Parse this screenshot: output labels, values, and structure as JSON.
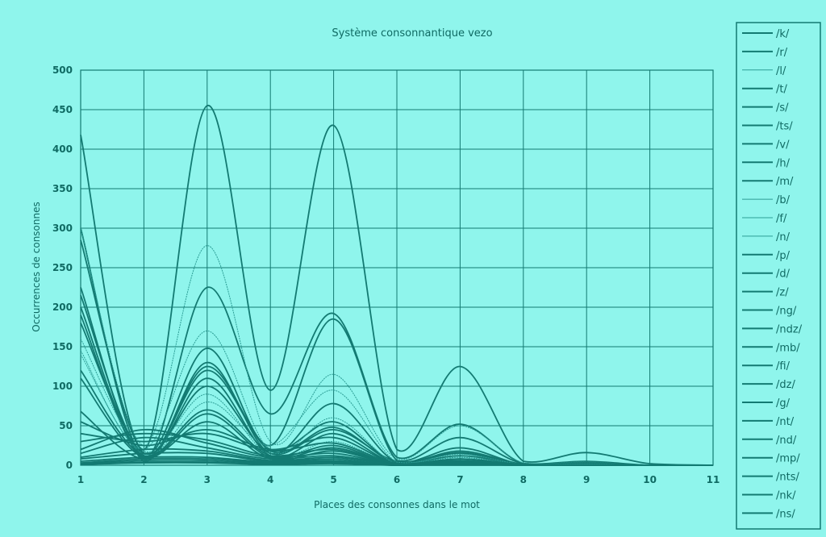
{
  "chart_data": {
    "type": "line",
    "title": "Système consonnantique vezo",
    "xlabel": "Places des consonnes dans le mot",
    "ylabel": "Occurrences de consonnes",
    "x": [
      1,
      2,
      3,
      4,
      5,
      6,
      7,
      8,
      9,
      10,
      11
    ],
    "xlim": [
      1,
      11
    ],
    "ylim": [
      0,
      500
    ],
    "yticks": [
      0,
      50,
      100,
      150,
      200,
      250,
      300,
      350,
      400,
      450,
      500
    ],
    "grid": true,
    "legend_position": "right",
    "series": [
      {
        "name": "/k/",
        "values": [
          418,
          20,
          455,
          95,
          430,
          20,
          125,
          5,
          16,
          2,
          0
        ]
      },
      {
        "name": "/r/",
        "values": [
          300,
          10,
          225,
          65,
          192,
          10,
          52,
          2,
          5,
          0,
          0
        ]
      },
      {
        "name": "/l/",
        "values": [
          300,
          25,
          278,
          30,
          115,
          8,
          50,
          3,
          4,
          0,
          0
        ]
      },
      {
        "name": "/t/",
        "values": [
          285,
          15,
          148,
          25,
          185,
          6,
          35,
          2,
          3,
          0,
          0
        ]
      },
      {
        "name": "/s/",
        "values": [
          225,
          5,
          130,
          15,
          78,
          4,
          22,
          1,
          2,
          0,
          0
        ]
      },
      {
        "name": "/ts/",
        "values": [
          215,
          12,
          120,
          20,
          55,
          3,
          18,
          1,
          1,
          0,
          0
        ]
      },
      {
        "name": "/v/",
        "values": [
          200,
          10,
          125,
          18,
          48,
          3,
          16,
          1,
          1,
          0,
          0
        ]
      },
      {
        "name": "/h/",
        "values": [
          190,
          8,
          110,
          12,
          40,
          2,
          12,
          1,
          1,
          0,
          0
        ]
      },
      {
        "name": "/m/",
        "values": [
          180,
          15,
          100,
          15,
          45,
          5,
          15,
          1,
          2,
          0,
          0
        ]
      },
      {
        "name": "/b/",
        "values": [
          160,
          18,
          90,
          12,
          30,
          2,
          10,
          1,
          1,
          0,
          0
        ]
      },
      {
        "name": "/f/",
        "values": [
          145,
          20,
          170,
          18,
          60,
          2,
          14,
          1,
          1,
          0,
          0
        ]
      },
      {
        "name": "/n/",
        "values": [
          140,
          14,
          80,
          25,
          95,
          4,
          10,
          1,
          1,
          0,
          0
        ]
      },
      {
        "name": "/p/",
        "values": [
          120,
          12,
          70,
          12,
          25,
          1,
          8,
          1,
          0,
          0,
          0
        ]
      },
      {
        "name": "/d/",
        "values": [
          110,
          10,
          65,
          10,
          22,
          1,
          6,
          0,
          0,
          0,
          0
        ]
      },
      {
        "name": "/z/",
        "values": [
          68,
          8,
          55,
          8,
          18,
          1,
          5,
          0,
          0,
          0,
          0
        ]
      },
      {
        "name": "/ng/",
        "values": [
          55,
          25,
          45,
          20,
          35,
          2,
          8,
          0,
          0,
          0,
          0
        ]
      },
      {
        "name": "/ndz/",
        "values": [
          40,
          30,
          40,
          18,
          28,
          2,
          6,
          0,
          0,
          0,
          0
        ]
      },
      {
        "name": "/mb/",
        "values": [
          30,
          40,
          32,
          12,
          20,
          1,
          5,
          0,
          0,
          0,
          0
        ]
      },
      {
        "name": "/fi/",
        "values": [
          20,
          45,
          28,
          10,
          15,
          1,
          4,
          0,
          0,
          0,
          0
        ]
      },
      {
        "name": "/dz/",
        "values": [
          15,
          35,
          22,
          8,
          12,
          1,
          3,
          0,
          0,
          0,
          0
        ]
      },
      {
        "name": "/g/",
        "values": [
          10,
          20,
          18,
          6,
          10,
          1,
          3,
          0,
          0,
          0,
          0
        ]
      },
      {
        "name": "/nt/",
        "values": [
          8,
          15,
          15,
          5,
          8,
          0,
          2,
          0,
          0,
          0,
          0
        ]
      },
      {
        "name": "/nd/",
        "values": [
          5,
          10,
          10,
          4,
          6,
          0,
          2,
          0,
          0,
          0,
          0
        ]
      },
      {
        "name": "/mp/",
        "values": [
          3,
          8,
          8,
          3,
          5,
          0,
          1,
          0,
          0,
          0,
          0
        ]
      },
      {
        "name": "/nts/",
        "values": [
          2,
          6,
          6,
          2,
          4,
          0,
          1,
          0,
          0,
          0,
          0
        ]
      },
      {
        "name": "/nk/",
        "values": [
          1,
          4,
          4,
          1,
          3,
          0,
          1,
          0,
          0,
          0,
          0
        ]
      },
      {
        "name": "/ns/",
        "values": [
          1,
          3,
          3,
          1,
          2,
          0,
          0,
          0,
          0,
          0,
          0
        ]
      }
    ]
  },
  "colors": {
    "background": "#8ff5ec",
    "line": "#137a72",
    "line_light": "#2d9e96",
    "grid": "#137a72",
    "text": "#0f6a63"
  }
}
